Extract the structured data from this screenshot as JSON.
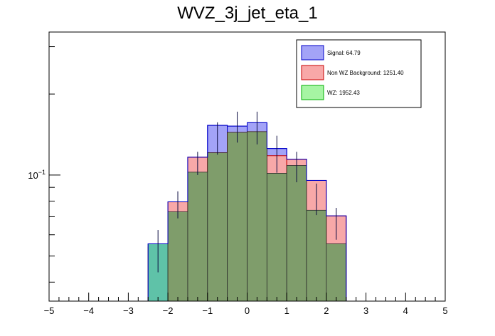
{
  "chart_data": {
    "type": "bar",
    "title": "WVZ_3j_jet_eta_1",
    "xlabel": "",
    "ylabel": "",
    "xlim": [
      -5,
      5
    ],
    "ylog": true,
    "ylim": [
      0.034,
      0.34
    ],
    "x_ticks": [
      "−5",
      "−4",
      "−3",
      "−2",
      "−1",
      "0",
      "1",
      "2",
      "3",
      "4",
      "5"
    ],
    "x_tick_values": [
      -5,
      -4,
      -3,
      -2,
      -1,
      0,
      1,
      2,
      3,
      4,
      5
    ],
    "y_tick_label": "10",
    "y_tick_exp": "−1",
    "bin_edges": [
      -2.5,
      -2.0,
      -1.5,
      -1.0,
      -0.5,
      0.0,
      0.5,
      1.0,
      1.5,
      2.0,
      2.5
    ],
    "stack_totals": {
      "wz": [
        0.0555,
        0.073,
        0.1025,
        0.121,
        0.144,
        0.145,
        0.1015,
        0.1085,
        0.074,
        0.0555
      ],
      "wz_plus_bkg": [
        0.054,
        0.0795,
        0.1165,
        0.121,
        0.144,
        0.145,
        0.118,
        0.1145,
        0.0955,
        0.0705
      ],
      "total": [
        0.0555,
        0.0795,
        0.1165,
        0.153,
        0.152,
        0.1565,
        0.1255,
        0.1145,
        0.0955,
        0.0705
      ]
    },
    "data_points": [
      {
        "x": -2.25,
        "y": 0.053,
        "err": 0.0095
      },
      {
        "x": -1.75,
        "y": 0.078,
        "err": 0.009
      },
      {
        "x": -1.25,
        "y": 0.111,
        "err": 0.011
      },
      {
        "x": -0.75,
        "y": 0.138,
        "err": 0.019
      },
      {
        "x": -0.25,
        "y": 0.152,
        "err": 0.02
      },
      {
        "x": 0.25,
        "y": 0.151,
        "err": 0.021
      },
      {
        "x": 0.75,
        "y": 0.121,
        "err": 0.019
      },
      {
        "x": 1.25,
        "y": 0.108,
        "err": 0.014
      },
      {
        "x": 1.75,
        "y": 0.082,
        "err": 0.011
      },
      {
        "x": 2.25,
        "y": 0.0665,
        "err": 0.009
      }
    ],
    "series": [
      {
        "name": "Signal: 64.79",
        "color": "#a3a3f7",
        "edge": "#0000c8"
      },
      {
        "name": "Non WZ Background: 1251.40",
        "color": "#f8a8a8",
        "edge": "#c80000"
      },
      {
        "name": "WZ: 1952.43",
        "color": "#a6f5a3",
        "edge": "#00b000"
      }
    ],
    "overlap_colors": {
      "wz_over_bkg": "#7f9d6b",
      "wz_over_signal": "#5fc2a8"
    },
    "legend_position": "top-right",
    "grid": false
  }
}
